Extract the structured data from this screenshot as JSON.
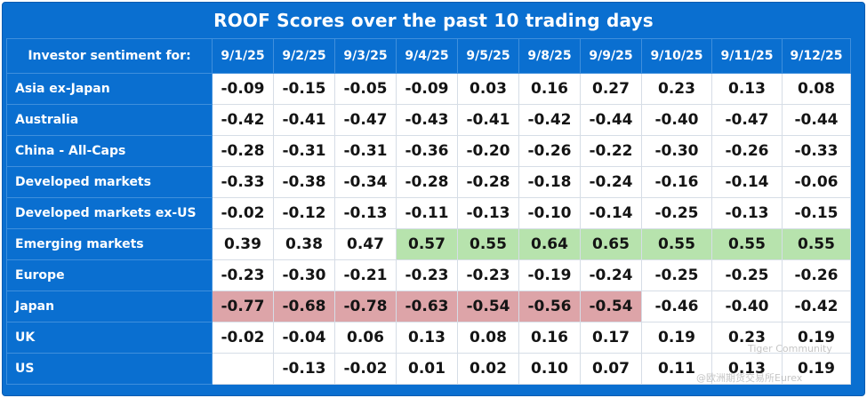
{
  "chart_data": {
    "type": "table",
    "title": "ROOF Scores over the past 10 trading days",
    "row_header_label": "Investor sentiment for:",
    "columns": [
      "9/1/25",
      "9/2/25",
      "9/3/25",
      "9/4/25",
      "9/5/25",
      "9/8/25",
      "9/9/25",
      "9/10/25",
      "9/11/25",
      "9/12/25"
    ],
    "rows": [
      {
        "label": "Asia ex-Japan",
        "values": [
          "-0.09",
          "-0.15",
          "-0.05",
          "-0.09",
          "0.03",
          "0.16",
          "0.27",
          "0.23",
          "0.13",
          "0.08"
        ]
      },
      {
        "label": "Australia",
        "values": [
          "-0.42",
          "-0.41",
          "-0.47",
          "-0.43",
          "-0.41",
          "-0.42",
          "-0.44",
          "-0.40",
          "-0.47",
          "-0.44"
        ]
      },
      {
        "label": "China - All-Caps",
        "values": [
          "-0.28",
          "-0.31",
          "-0.31",
          "-0.36",
          "-0.20",
          "-0.26",
          "-0.22",
          "-0.30",
          "-0.26",
          "-0.33"
        ]
      },
      {
        "label": "Developed markets",
        "values": [
          "-0.33",
          "-0.38",
          "-0.34",
          "-0.28",
          "-0.28",
          "-0.18",
          "-0.24",
          "-0.16",
          "-0.14",
          "-0.06"
        ]
      },
      {
        "label": "Developed markets ex-US",
        "values": [
          "-0.02",
          "-0.12",
          "-0.13",
          "-0.11",
          "-0.13",
          "-0.10",
          "-0.14",
          "-0.25",
          "-0.13",
          "-0.15"
        ]
      },
      {
        "label": "Emerging markets",
        "values": [
          "0.39",
          "0.38",
          "0.47",
          "0.57",
          "0.55",
          "0.64",
          "0.65",
          "0.55",
          "0.55",
          "0.55"
        ]
      },
      {
        "label": "Europe",
        "values": [
          "-0.23",
          "-0.30",
          "-0.21",
          "-0.23",
          "-0.23",
          "-0.19",
          "-0.24",
          "-0.25",
          "-0.25",
          "-0.26"
        ]
      },
      {
        "label": "Japan",
        "values": [
          "-0.77",
          "-0.68",
          "-0.78",
          "-0.63",
          "-0.54",
          "-0.56",
          "-0.54",
          "-0.46",
          "-0.40",
          "-0.42"
        ]
      },
      {
        "label": "UK",
        "values": [
          "-0.02",
          "-0.04",
          "0.06",
          "0.13",
          "0.08",
          "0.16",
          "0.17",
          "0.19",
          "0.23",
          "0.19"
        ]
      },
      {
        "label": "US",
        "values": [
          "",
          "-0.13",
          "-0.02",
          "0.01",
          "0.02",
          "0.10",
          "0.07",
          "0.11",
          "0.13",
          "0.19"
        ]
      }
    ],
    "highlight_thresholds": {
      "positive_above": 0.5,
      "negative_below": -0.5
    },
    "colors": {
      "header": "#0a6fd0",
      "positive": "#b7e3ad",
      "negative": "#dda4a8",
      "cell": "#ffffff"
    }
  },
  "watermark": {
    "line1": "Tiger Community",
    "line2": "@欧洲期货交易所Eurex"
  }
}
